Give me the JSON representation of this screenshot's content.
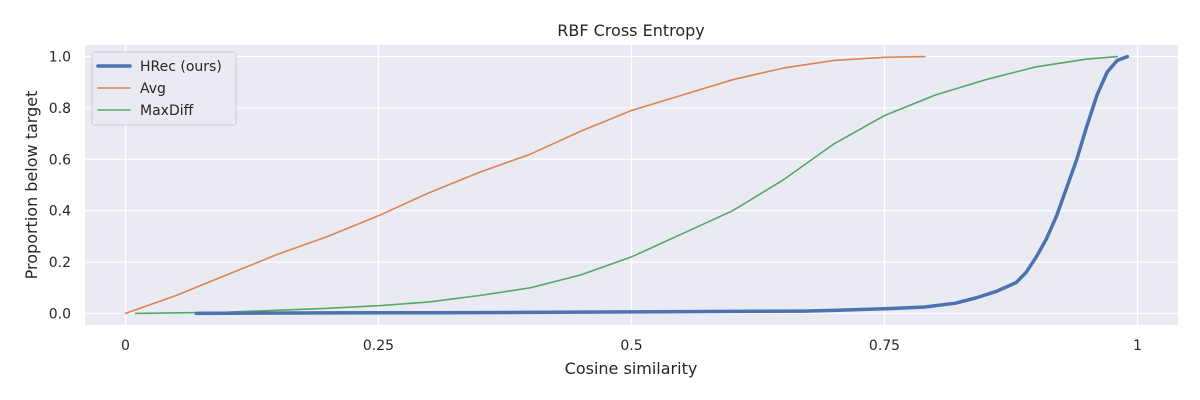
{
  "chart_data": {
    "type": "line",
    "title": "RBF Cross Entropy",
    "xlabel": "Cosine similarity",
    "ylabel": "Proportion below target",
    "xlim": [
      -0.04,
      1.04
    ],
    "ylim": [
      -0.045,
      1.045
    ],
    "x_ticks": [
      0,
      0.25,
      0.5,
      0.75,
      1
    ],
    "x_tick_labels": [
      "0",
      "0.25",
      "0.5",
      "0.75",
      "1"
    ],
    "y_ticks": [
      0,
      0.2,
      0.4,
      0.6,
      0.8,
      1
    ],
    "y_tick_labels": [
      "0.0",
      "0.2",
      "0.4",
      "0.6",
      "0.8",
      "1.0"
    ],
    "grid": true,
    "legend_position": "top-left",
    "background_color": "#eaeaf2",
    "series": [
      {
        "name": "HRec (ours)",
        "color": "#4c72b0",
        "line_width": 3.5,
        "points": [
          [
            0.07,
            0.0
          ],
          [
            0.2,
            0.002
          ],
          [
            0.3,
            0.003
          ],
          [
            0.4,
            0.004
          ],
          [
            0.5,
            0.006
          ],
          [
            0.6,
            0.008
          ],
          [
            0.67,
            0.009
          ],
          [
            0.7,
            0.012
          ],
          [
            0.75,
            0.018
          ],
          [
            0.79,
            0.025
          ],
          [
            0.82,
            0.04
          ],
          [
            0.84,
            0.06
          ],
          [
            0.86,
            0.085
          ],
          [
            0.88,
            0.12
          ],
          [
            0.89,
            0.16
          ],
          [
            0.9,
            0.22
          ],
          [
            0.91,
            0.29
          ],
          [
            0.92,
            0.38
          ],
          [
            0.93,
            0.49
          ],
          [
            0.94,
            0.6
          ],
          [
            0.95,
            0.73
          ],
          [
            0.96,
            0.85
          ],
          [
            0.97,
            0.94
          ],
          [
            0.98,
            0.985
          ],
          [
            0.99,
            1.0
          ]
        ]
      },
      {
        "name": "Avg",
        "color": "#dd8452",
        "line_width": 1.6,
        "points": [
          [
            0.0,
            0.0
          ],
          [
            0.05,
            0.07
          ],
          [
            0.1,
            0.15
          ],
          [
            0.15,
            0.23
          ],
          [
            0.2,
            0.3
          ],
          [
            0.25,
            0.38
          ],
          [
            0.3,
            0.47
          ],
          [
            0.35,
            0.55
          ],
          [
            0.4,
            0.62
          ],
          [
            0.45,
            0.71
          ],
          [
            0.5,
            0.79
          ],
          [
            0.55,
            0.85
          ],
          [
            0.6,
            0.91
          ],
          [
            0.65,
            0.955
          ],
          [
            0.7,
            0.985
          ],
          [
            0.75,
            0.997
          ],
          [
            0.79,
            1.0
          ]
        ]
      },
      {
        "name": "MaxDiff",
        "color": "#55a868",
        "line_width": 1.6,
        "points": [
          [
            0.01,
            0.0
          ],
          [
            0.1,
            0.005
          ],
          [
            0.2,
            0.02
          ],
          [
            0.25,
            0.03
          ],
          [
            0.3,
            0.045
          ],
          [
            0.35,
            0.07
          ],
          [
            0.4,
            0.1
          ],
          [
            0.45,
            0.15
          ],
          [
            0.5,
            0.22
          ],
          [
            0.55,
            0.31
          ],
          [
            0.6,
            0.4
          ],
          [
            0.65,
            0.52
          ],
          [
            0.7,
            0.66
          ],
          [
            0.75,
            0.77
          ],
          [
            0.8,
            0.85
          ],
          [
            0.85,
            0.91
          ],
          [
            0.9,
            0.96
          ],
          [
            0.95,
            0.99
          ],
          [
            0.98,
            1.0
          ]
        ]
      }
    ]
  }
}
